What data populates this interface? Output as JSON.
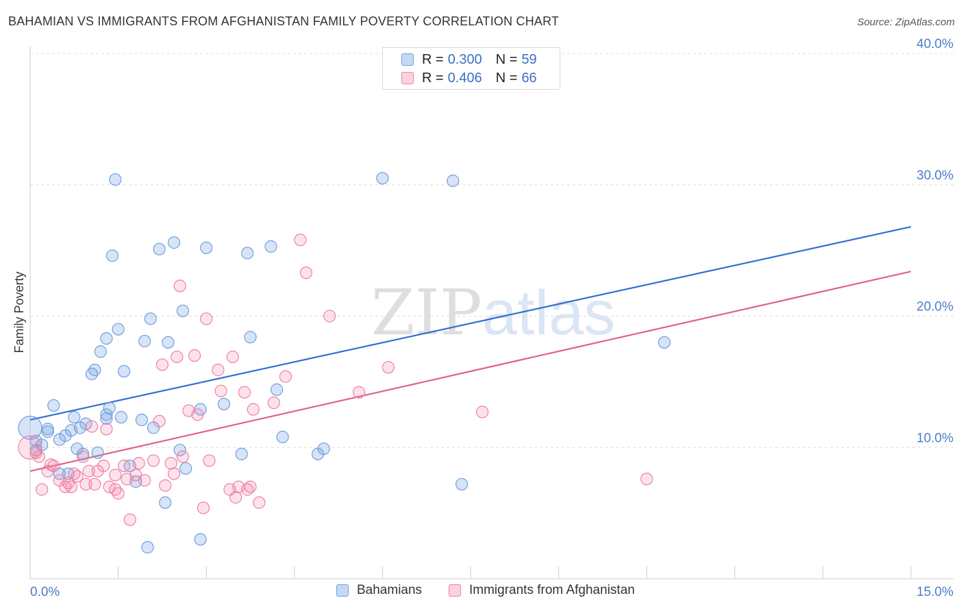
{
  "title": "BAHAMIAN VS IMMIGRANTS FROM AFGHANISTAN FAMILY POVERTY CORRELATION CHART",
  "source": "Source: ZipAtlas.com",
  "watermark": "ZIPatlas",
  "legend": {
    "r_label": "R =",
    "n_label": "N =",
    "rows": [
      {
        "r": "0.300",
        "n": "59",
        "color": "#6f9fe0"
      },
      {
        "r": "0.406",
        "n": "66",
        "color": "#f07fa3"
      }
    ]
  },
  "chart_data": {
    "type": "scatter",
    "title": "BAHAMIAN VS IMMIGRANTS FROM AFGHANISTAN FAMILY POVERTY CORRELATION CHART",
    "xlabel": "",
    "ylabel": "Family Poverty",
    "xlim": [
      0,
      15
    ],
    "ylim": [
      0,
      40
    ],
    "x_ticks": [
      "0.0%",
      "15.0%"
    ],
    "y_ticks": [
      "10.0%",
      "20.0%",
      "30.0%",
      "40.0%"
    ],
    "grid": true,
    "legend_position": "top-center",
    "series": [
      {
        "name": "Bahamians",
        "color": "#6f9fe0",
        "trend": {
          "x": [
            0,
            15
          ],
          "y": [
            12.1,
            26.8
          ]
        },
        "points": [
          {
            "x": 0.0,
            "y": 11.5,
            "big": true
          },
          {
            "x": 0.1,
            "y": 10.5
          },
          {
            "x": 0.1,
            "y": 9.8
          },
          {
            "x": 0.2,
            "y": 10.2
          },
          {
            "x": 0.3,
            "y": 11.4
          },
          {
            "x": 0.3,
            "y": 11.2
          },
          {
            "x": 0.4,
            "y": 13.2
          },
          {
            "x": 0.5,
            "y": 10.6
          },
          {
            "x": 0.6,
            "y": 10.9
          },
          {
            "x": 0.7,
            "y": 11.3
          },
          {
            "x": 0.75,
            "y": 12.3
          },
          {
            "x": 0.8,
            "y": 9.9
          },
          {
            "x": 0.85,
            "y": 11.5
          },
          {
            "x": 0.9,
            "y": 9.5
          },
          {
            "x": 0.95,
            "y": 11.8
          },
          {
            "x": 1.05,
            "y": 15.6
          },
          {
            "x": 1.1,
            "y": 15.9
          },
          {
            "x": 1.15,
            "y": 9.6
          },
          {
            "x": 1.2,
            "y": 17.3
          },
          {
            "x": 1.3,
            "y": 18.3
          },
          {
            "x": 1.3,
            "y": 12.2
          },
          {
            "x": 1.35,
            "y": 13.0
          },
          {
            "x": 1.45,
            "y": 30.4
          },
          {
            "x": 1.4,
            "y": 24.6
          },
          {
            "x": 1.5,
            "y": 19.0
          },
          {
            "x": 1.55,
            "y": 12.3
          },
          {
            "x": 1.6,
            "y": 15.8
          },
          {
            "x": 1.7,
            "y": 8.6
          },
          {
            "x": 1.8,
            "y": 7.4
          },
          {
            "x": 1.9,
            "y": 12.1
          },
          {
            "x": 1.95,
            "y": 18.1
          },
          {
            "x": 2.05,
            "y": 19.8
          },
          {
            "x": 2.1,
            "y": 11.5
          },
          {
            "x": 2.2,
            "y": 25.1
          },
          {
            "x": 2.3,
            "y": 5.8
          },
          {
            "x": 2.45,
            "y": 25.6
          },
          {
            "x": 2.55,
            "y": 9.8
          },
          {
            "x": 2.6,
            "y": 20.4
          },
          {
            "x": 2.9,
            "y": 12.9
          },
          {
            "x": 3.0,
            "y": 25.2
          },
          {
            "x": 3.3,
            "y": 13.3
          },
          {
            "x": 3.7,
            "y": 24.8
          },
          {
            "x": 3.75,
            "y": 18.4
          },
          {
            "x": 4.1,
            "y": 25.3
          },
          {
            "x": 4.2,
            "y": 14.4
          },
          {
            "x": 4.3,
            "y": 10.8
          },
          {
            "x": 4.9,
            "y": 9.5
          },
          {
            "x": 5.0,
            "y": 9.9
          },
          {
            "x": 6.0,
            "y": 30.5
          },
          {
            "x": 7.2,
            "y": 30.3
          },
          {
            "x": 7.35,
            "y": 7.2
          },
          {
            "x": 10.8,
            "y": 18.0
          },
          {
            "x": 3.6,
            "y": 9.5
          },
          {
            "x": 2.65,
            "y": 8.4
          },
          {
            "x": 1.3,
            "y": 12.5
          },
          {
            "x": 0.5,
            "y": 8.0
          },
          {
            "x": 0.65,
            "y": 8.0
          },
          {
            "x": 2.0,
            "y": 2.4
          },
          {
            "x": 2.9,
            "y": 3.0
          },
          {
            "x": 2.35,
            "y": 18.0
          }
        ]
      },
      {
        "name": "Immigrants from Afghanistan",
        "color": "#f07fa3",
        "trend": {
          "x": [
            0,
            15
          ],
          "y": [
            8.2,
            23.4
          ]
        },
        "points": [
          {
            "x": 0.0,
            "y": 10.0,
            "big": true
          },
          {
            "x": 0.1,
            "y": 9.6
          },
          {
            "x": 0.15,
            "y": 9.3
          },
          {
            "x": 0.2,
            "y": 6.8
          },
          {
            "x": 0.3,
            "y": 8.2
          },
          {
            "x": 0.35,
            "y": 8.7
          },
          {
            "x": 0.4,
            "y": 8.6
          },
          {
            "x": 0.5,
            "y": 7.5
          },
          {
            "x": 0.6,
            "y": 7.0
          },
          {
            "x": 0.65,
            "y": 7.3
          },
          {
            "x": 0.7,
            "y": 7.0
          },
          {
            "x": 0.75,
            "y": 8.0
          },
          {
            "x": 0.8,
            "y": 7.8
          },
          {
            "x": 0.9,
            "y": 9.3
          },
          {
            "x": 0.95,
            "y": 7.2
          },
          {
            "x": 1.0,
            "y": 8.2
          },
          {
            "x": 1.05,
            "y": 11.6
          },
          {
            "x": 1.1,
            "y": 7.2
          },
          {
            "x": 1.15,
            "y": 8.2
          },
          {
            "x": 1.25,
            "y": 8.6
          },
          {
            "x": 1.3,
            "y": 11.4
          },
          {
            "x": 1.35,
            "y": 7.0
          },
          {
            "x": 1.45,
            "y": 7.9
          },
          {
            "x": 1.5,
            "y": 6.5
          },
          {
            "x": 1.6,
            "y": 8.6
          },
          {
            "x": 1.65,
            "y": 7.6
          },
          {
            "x": 1.7,
            "y": 4.5
          },
          {
            "x": 1.8,
            "y": 7.9
          },
          {
            "x": 1.85,
            "y": 8.8
          },
          {
            "x": 1.95,
            "y": 7.5
          },
          {
            "x": 2.1,
            "y": 9.0
          },
          {
            "x": 2.2,
            "y": 12.0
          },
          {
            "x": 2.25,
            "y": 16.3
          },
          {
            "x": 2.3,
            "y": 7.1
          },
          {
            "x": 2.45,
            "y": 8.0
          },
          {
            "x": 2.5,
            "y": 16.9
          },
          {
            "x": 2.55,
            "y": 22.3
          },
          {
            "x": 2.6,
            "y": 9.3
          },
          {
            "x": 2.7,
            "y": 12.8
          },
          {
            "x": 2.8,
            "y": 17.0
          },
          {
            "x": 2.85,
            "y": 12.5
          },
          {
            "x": 2.95,
            "y": 5.4
          },
          {
            "x": 3.0,
            "y": 19.8
          },
          {
            "x": 3.05,
            "y": 9.0
          },
          {
            "x": 3.2,
            "y": 15.9
          },
          {
            "x": 3.25,
            "y": 14.3
          },
          {
            "x": 3.45,
            "y": 16.9
          },
          {
            "x": 3.5,
            "y": 6.2
          },
          {
            "x": 3.55,
            "y": 7.0
          },
          {
            "x": 3.65,
            "y": 14.2
          },
          {
            "x": 3.7,
            "y": 6.8
          },
          {
            "x": 3.75,
            "y": 7.0
          },
          {
            "x": 3.8,
            "y": 12.9
          },
          {
            "x": 3.9,
            "y": 5.8
          },
          {
            "x": 4.15,
            "y": 13.4
          },
          {
            "x": 4.35,
            "y": 15.4
          },
          {
            "x": 4.6,
            "y": 25.8
          },
          {
            "x": 4.7,
            "y": 23.3
          },
          {
            "x": 5.1,
            "y": 20.0
          },
          {
            "x": 5.6,
            "y": 14.2
          },
          {
            "x": 6.1,
            "y": 16.1
          },
          {
            "x": 7.7,
            "y": 12.7
          },
          {
            "x": 10.5,
            "y": 7.6
          },
          {
            "x": 2.4,
            "y": 8.8
          },
          {
            "x": 1.45,
            "y": 6.8
          },
          {
            "x": 3.4,
            "y": 6.8
          }
        ]
      }
    ]
  }
}
